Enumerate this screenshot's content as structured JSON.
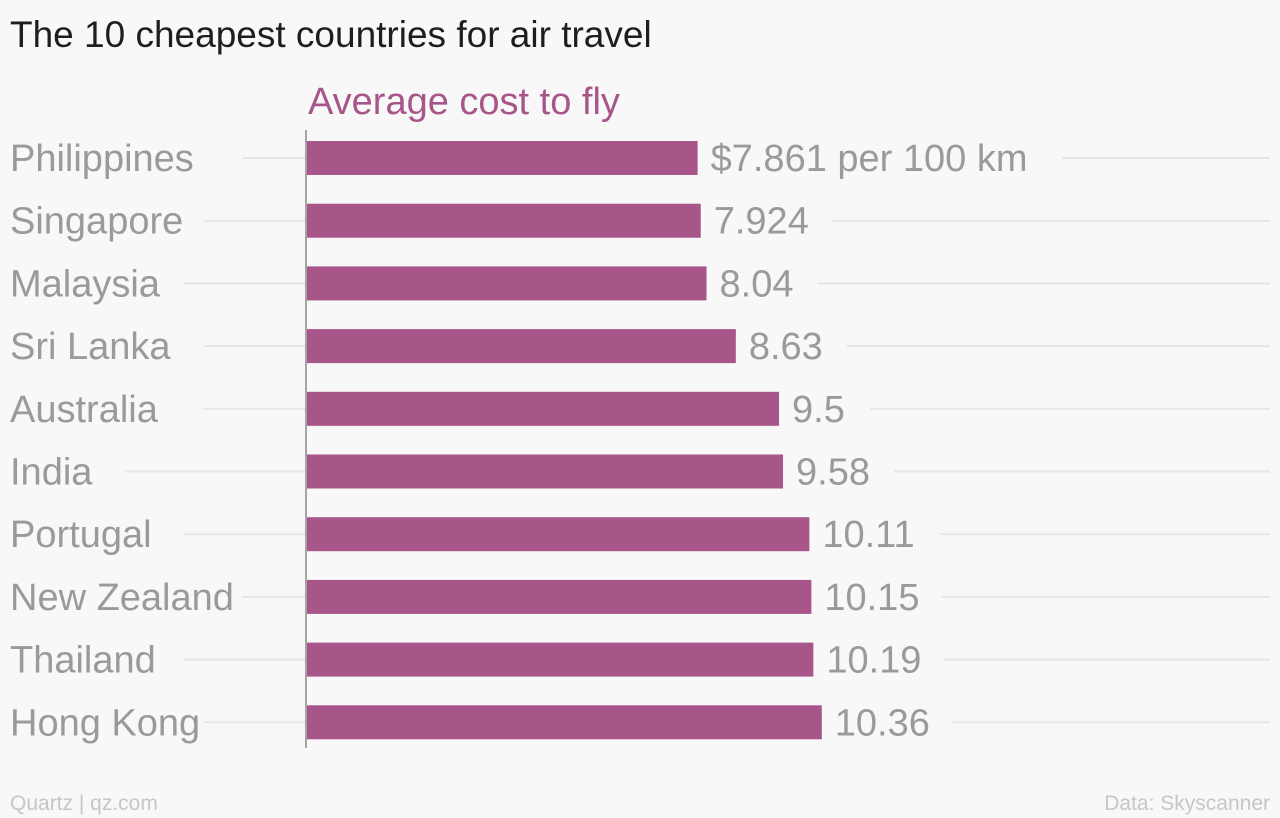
{
  "title": "The 10 cheapest countries for air travel",
  "footer": {
    "credit": "Quartz | qz.com",
    "source": "Data: Skyscanner"
  },
  "colors": {
    "bar": "#a8558a",
    "series_label": "#a8558a",
    "text_muted": "#9a9a9a",
    "gridline": "#e6e6e6",
    "axis": "#888888",
    "background": "#f8f8f8"
  },
  "chart_data": {
    "type": "bar",
    "orientation": "horizontal",
    "title": "The 10 cheapest countries for air travel",
    "series": [
      {
        "name": "Average cost to fly",
        "values": [
          7.861,
          7.924,
          8.04,
          8.63,
          9.5,
          9.58,
          10.11,
          10.15,
          10.19,
          10.36
        ]
      }
    ],
    "categories": [
      "Philippines",
      "Singapore",
      "Malaysia",
      "Sri Lanka",
      "Australia",
      "India",
      "Portugal",
      "New Zealand",
      "Thailand",
      "Hong Kong"
    ],
    "value_labels": [
      "$7.861 per 100 km",
      "7.924",
      "8.04",
      "8.63",
      "9.5",
      "9.58",
      "10.11",
      "10.15",
      "10.19",
      "10.36"
    ],
    "xlim": [
      0,
      19.4
    ],
    "grid": true,
    "legend": "none"
  }
}
